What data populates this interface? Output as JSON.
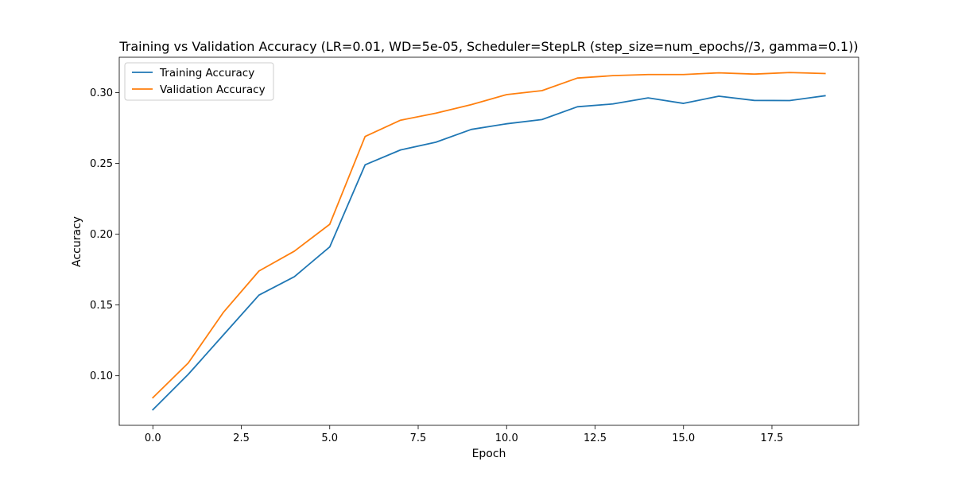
{
  "chart_data": {
    "type": "line",
    "title": "Training vs Validation Accuracy (LR=0.01, WD=5e-05, Scheduler=StepLR (step_size=num_epochs//3, gamma=0.1))",
    "xlabel": "Epoch",
    "ylabel": "Accuracy",
    "xlim": [
      -0.95,
      19.95
    ],
    "ylim": [
      0.065,
      0.325
    ],
    "xticks": [
      0.0,
      2.5,
      5.0,
      7.5,
      10.0,
      12.5,
      15.0,
      17.5
    ],
    "xtick_labels": [
      "0.0",
      "2.5",
      "5.0",
      "7.5",
      "10.0",
      "12.5",
      "15.0",
      "17.5"
    ],
    "yticks": [
      0.1,
      0.15,
      0.2,
      0.25,
      0.3
    ],
    "ytick_labels": [
      "0.10",
      "0.15",
      "0.20",
      "0.25",
      "0.30"
    ],
    "grid": false,
    "legend_position": "top-left",
    "x": [
      0,
      1,
      2,
      3,
      4,
      5,
      6,
      7,
      8,
      9,
      10,
      11,
      12,
      13,
      14,
      15,
      16,
      17,
      18,
      19
    ],
    "series": [
      {
        "name": "Training Accuracy",
        "color": "#1f77b4",
        "values": [
          0.076,
          0.101,
          0.129,
          0.157,
          0.17,
          0.191,
          0.249,
          0.2595,
          0.265,
          0.274,
          0.278,
          0.281,
          0.29,
          0.292,
          0.2963,
          0.2924,
          0.2975,
          0.2945,
          0.2944,
          0.2978
        ]
      },
      {
        "name": "Validation Accuracy",
        "color": "#ff7f0e",
        "values": [
          0.0845,
          0.109,
          0.145,
          0.174,
          0.188,
          0.207,
          0.269,
          0.2805,
          0.2855,
          0.2915,
          0.2986,
          0.3014,
          0.3103,
          0.312,
          0.3128,
          0.3128,
          0.314,
          0.3131,
          0.3142,
          0.3135
        ]
      }
    ]
  }
}
